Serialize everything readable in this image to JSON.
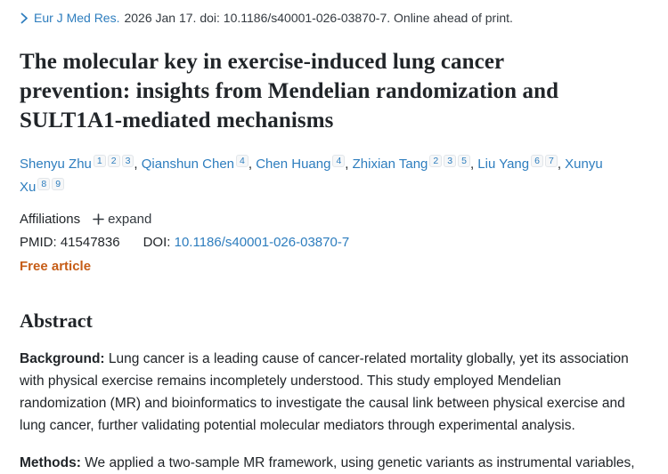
{
  "colors": {
    "link": "#2d7dbe",
    "free_article": "#c65d17",
    "text": "#212529"
  },
  "citation": {
    "journal": "Eur J Med Res.",
    "rest": "2026 Jan 17. doi: 10.1186/s40001-026-03870-7. Online ahead of print."
  },
  "title": "The molecular key in exercise-induced lung cancer prevention: insights from Mendelian randomization and SULT1A1-mediated mechanisms",
  "authors": [
    {
      "name": "Shenyu Zhu",
      "sups": [
        "1",
        "2",
        "3"
      ]
    },
    {
      "name": "Qianshun Chen",
      "sups": [
        "4"
      ]
    },
    {
      "name": "Chen Huang",
      "sups": [
        "4"
      ]
    },
    {
      "name": "Zhixian Tang",
      "sups": [
        "2",
        "3",
        "5"
      ]
    },
    {
      "name": "Liu Yang",
      "sups": [
        "6",
        "7"
      ]
    },
    {
      "name": "Xunyu Xu",
      "sups": [
        "8",
        "9"
      ]
    }
  ],
  "affiliations": {
    "label": "Affiliations",
    "expand_label": "expand"
  },
  "identifiers": {
    "pmid_label": "PMID:",
    "pmid": "41547836",
    "doi_label": "DOI:",
    "doi": "10.1186/s40001-026-03870-7"
  },
  "free_article_label": "Free article",
  "abstract": {
    "heading": "Abstract",
    "sections": [
      {
        "label": "Background:",
        "text": "Lung cancer is a leading cause of cancer-related mortality globally, yet its association with physical exercise remains incompletely understood. This study employed Mendelian randomization (MR) and bioinformatics to investigate the causal link between physical exercise and lung cancer, further validating potential molecular mediators through experimental analysis."
      },
      {
        "label": "Methods:",
        "text": "We applied a two-sample MR framework, using genetic variants as instrumental variables,"
      }
    ]
  }
}
